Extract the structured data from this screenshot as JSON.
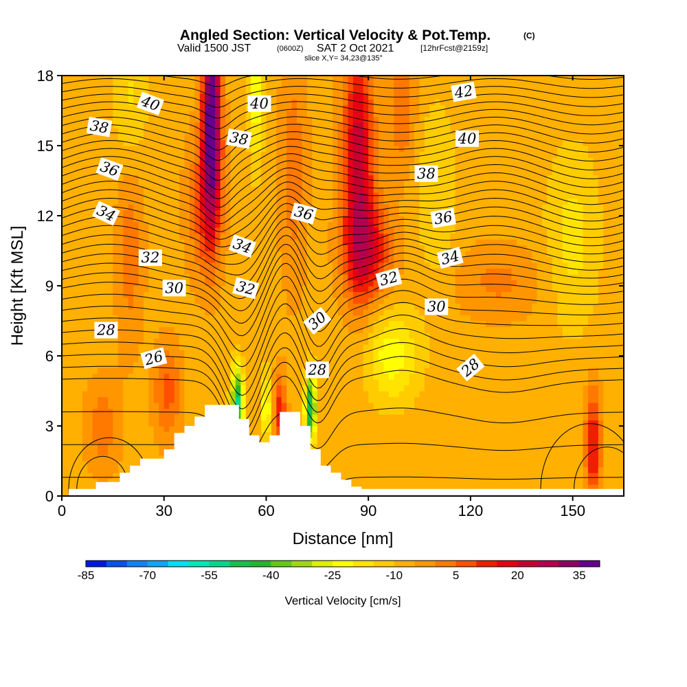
{
  "title": {
    "main": "Angled Section: Vertical Velocity & Pot.Temp.",
    "copyright": "(C)",
    "valid_prefix": "Valid 1500 JST",
    "valid_z": "(0600Z)",
    "valid_date": "SAT 2 Oct 2021",
    "forecast": "[12hrFcst@2159z]",
    "slice": "slice X,Y= 34,23@135°"
  },
  "chart_data": {
    "type": "heatmap",
    "xlabel": "Distance [nm]",
    "ylabel": "Height [Kft MSL]",
    "xlim": [
      0,
      165
    ],
    "ylim": [
      0,
      18
    ],
    "xticks": [
      0,
      30,
      60,
      90,
      120,
      150
    ],
    "yticks": [
      0,
      3,
      6,
      9,
      12,
      15,
      18
    ],
    "grid": false,
    "colorbar": {
      "label": "Vertical Velocity [cm/s]",
      "placement": "bottom",
      "ticks": [
        "-85",
        "-70",
        "-55",
        "-40",
        "-25",
        "-10",
        "5",
        "20",
        "35"
      ],
      "colors": [
        "#0018e6",
        "#0a50f0",
        "#1280ff",
        "#0aa8f5",
        "#00e0f0",
        "#00e8b4",
        "#00d88c",
        "#14c050",
        "#28b430",
        "#64c818",
        "#a0d810",
        "#dcf000",
        "#ffff00",
        "#ffe400",
        "#ffcc00",
        "#ffb000",
        "#ff9600",
        "#ff7800",
        "#ff5000",
        "#f01e00",
        "#e60014",
        "#c80032",
        "#b40050",
        "#8c0064",
        "#64008c"
      ]
    },
    "vertical_velocity_features": [
      {
        "x": 44,
        "y_range": [
          10,
          18
        ],
        "value": 35,
        "note": "updraft core"
      },
      {
        "x": 87,
        "y_range": [
          8,
          18
        ],
        "value": 20,
        "note": "updraft"
      },
      {
        "x": 52,
        "y_range": [
          2.5,
          6
        ],
        "value": -40,
        "note": "downdraft lee"
      },
      {
        "x": 73,
        "y_range": [
          2.5,
          5
        ],
        "value": -40,
        "note": "downdraft lee"
      },
      {
        "x": 64,
        "y_range": [
          2.5,
          5
        ],
        "value": 20,
        "note": "updraft"
      },
      {
        "x": 156,
        "y_range": [
          1,
          4
        ],
        "value": 20,
        "note": "updraft"
      }
    ],
    "terrain_profile": {
      "x": [
        0,
        2,
        10,
        17,
        20,
        23,
        30,
        33,
        36,
        39,
        42,
        45,
        48,
        52,
        55,
        58,
        61,
        64,
        67,
        70,
        73,
        76,
        79,
        82,
        85,
        88,
        90,
        165
      ],
      "height": [
        0,
        0.3,
        0.6,
        1.0,
        1.3,
        1.6,
        2.0,
        2.7,
        3.0,
        3.4,
        3.9,
        3.9,
        3.9,
        3.3,
        2.6,
        2.3,
        2.6,
        3.6,
        3.6,
        3.0,
        2.0,
        1.3,
        1.0,
        0.7,
        0.4,
        0.3,
        0.3,
        0.3
      ]
    },
    "isentropes": {
      "label": "Pot.Temp.",
      "levels": [
        22,
        23,
        24,
        25,
        26,
        26.5,
        27,
        27.5,
        28,
        28.5,
        29,
        29.5,
        30,
        30.5,
        31,
        31.5,
        32,
        32.5,
        33,
        33.5,
        34,
        34.5,
        35,
        35.5,
        36,
        36.5,
        37,
        37.5,
        38,
        38.5,
        39,
        39.5,
        40,
        40.5,
        41,
        41.5,
        42,
        42.5
      ],
      "labels": [
        {
          "text": "40",
          "x": 26,
          "y": 16.8,
          "angle": 20
        },
        {
          "text": "40",
          "x": 58,
          "y": 16.8,
          "angle": 0
        },
        {
          "text": "42",
          "x": 118,
          "y": 17.3,
          "angle": -10
        },
        {
          "text": "38",
          "x": 11,
          "y": 15.8,
          "angle": 10
        },
        {
          "text": "38",
          "x": 52,
          "y": 15.3,
          "angle": 10
        },
        {
          "text": "40",
          "x": 119,
          "y": 15.3,
          "angle": 0
        },
        {
          "text": "36",
          "x": 14,
          "y": 14.0,
          "angle": 20
        },
        {
          "text": "38",
          "x": 107,
          "y": 13.8,
          "angle": 0
        },
        {
          "text": "34",
          "x": 13,
          "y": 12.1,
          "angle": 25
        },
        {
          "text": "36",
          "x": 71,
          "y": 12.1,
          "angle": 15
        },
        {
          "text": "36",
          "x": 112,
          "y": 11.9,
          "angle": -10
        },
        {
          "text": "34",
          "x": 53,
          "y": 10.7,
          "angle": 20
        },
        {
          "text": "32",
          "x": 26,
          "y": 10.2,
          "angle": 0
        },
        {
          "text": "34",
          "x": 114,
          "y": 10.2,
          "angle": -15
        },
        {
          "text": "32",
          "x": 54,
          "y": 8.9,
          "angle": 15
        },
        {
          "text": "32",
          "x": 96,
          "y": 9.3,
          "angle": -15
        },
        {
          "text": "30",
          "x": 33,
          "y": 8.9,
          "angle": 0
        },
        {
          "text": "30",
          "x": 110,
          "y": 8.1,
          "angle": 0
        },
        {
          "text": "30",
          "x": 75,
          "y": 7.5,
          "angle": -40
        },
        {
          "text": "28",
          "x": 13,
          "y": 7.1,
          "angle": 0
        },
        {
          "text": "26",
          "x": 27,
          "y": 5.9,
          "angle": -15
        },
        {
          "text": "28",
          "x": 75,
          "y": 5.4,
          "angle": 0
        },
        {
          "text": "28",
          "x": 120,
          "y": 5.5,
          "angle": -40
        }
      ]
    }
  }
}
